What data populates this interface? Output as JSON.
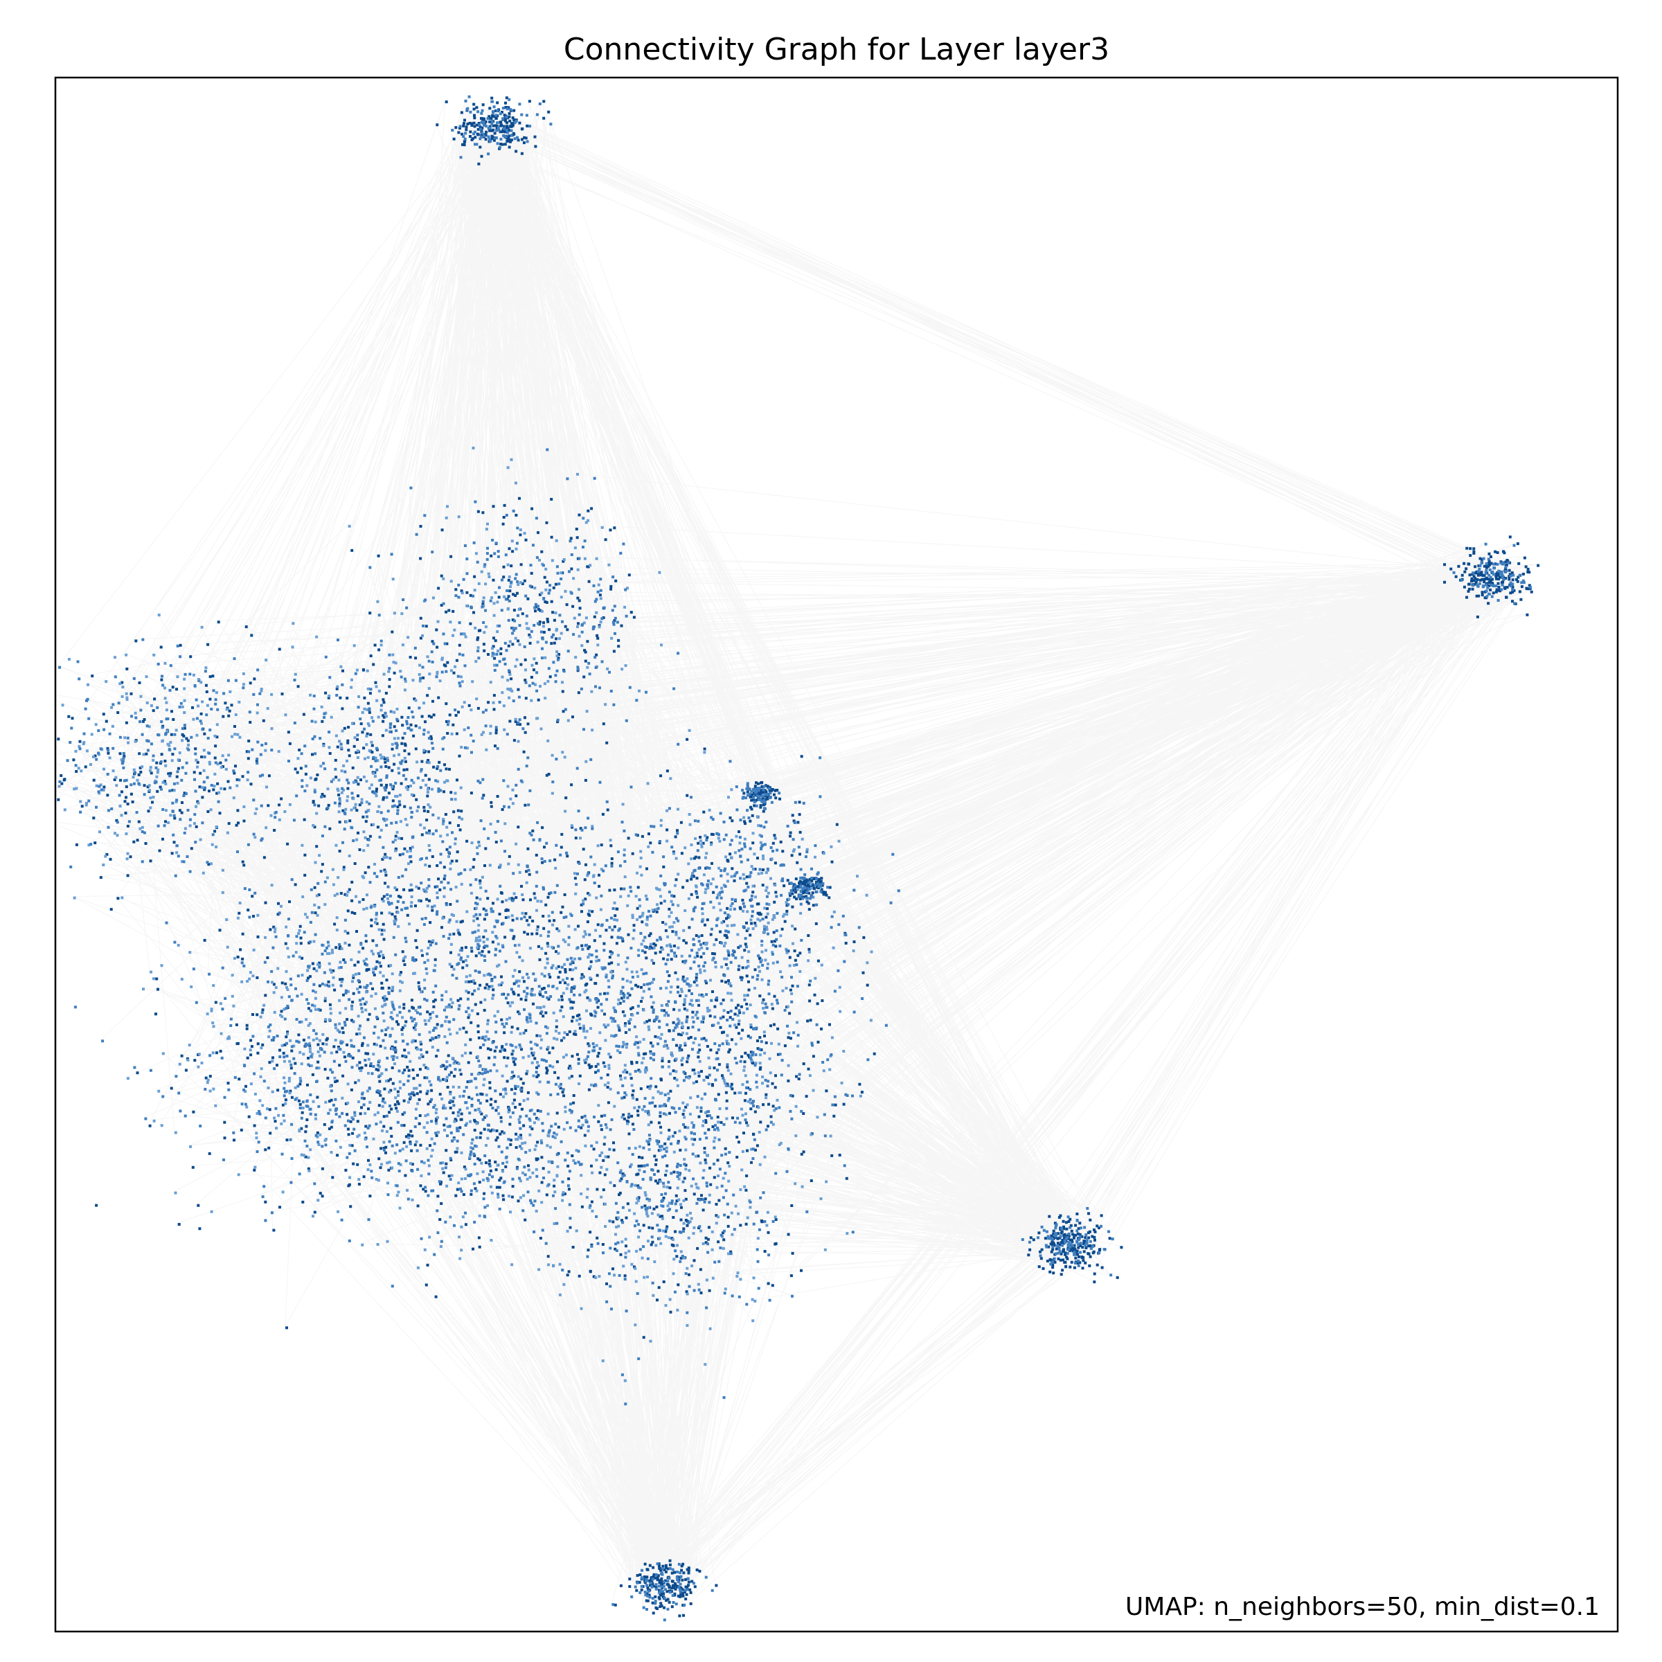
{
  "chart_data": {
    "type": "scatter",
    "title": "Connectivity Graph for Layer layer3",
    "annotation": "UMAP: n_neighbors=50, min_dist=0.1",
    "xlabel": "",
    "ylabel": "",
    "xticks": [],
    "yticks": [],
    "grid": false,
    "legend": "none",
    "xlim": [
      0,
      100
    ],
    "ylim": [
      0,
      100
    ],
    "colors": {
      "point_light": "#6a9fd4",
      "point_mid": "#3f7fc0",
      "point_dark": "#0b4a8c",
      "edge": "#9a9a9a",
      "frame": "#000000"
    },
    "main_cluster": {
      "center": [
        26,
        45
      ],
      "lobes": [
        {
          "x": 7,
          "y": 56,
          "spread": 5
        },
        {
          "x": 17,
          "y": 37,
          "spread": 6
        },
        {
          "x": 24,
          "y": 44,
          "spread": 8
        },
        {
          "x": 21,
          "y": 56,
          "spread": 5
        },
        {
          "x": 30,
          "y": 65,
          "spread": 5
        },
        {
          "x": 35,
          "y": 42,
          "spread": 7
        },
        {
          "x": 42,
          "y": 38,
          "spread": 6
        },
        {
          "x": 39,
          "y": 28,
          "spread": 5
        },
        {
          "x": 27,
          "y": 32,
          "spread": 5
        },
        {
          "x": 44,
          "y": 48,
          "spread": 4
        }
      ]
    },
    "satellite_clusters": [
      {
        "name": "top",
        "x": 28,
        "y": 97,
        "spread": 1.6
      },
      {
        "name": "right",
        "x": 92,
        "y": 68,
        "spread": 1.6
      },
      {
        "name": "lower-right",
        "x": 65,
        "y": 25,
        "spread": 1.7
      },
      {
        "name": "bottom",
        "x": 39,
        "y": 3,
        "spread": 1.5
      },
      {
        "name": "tip-a",
        "x": 45,
        "y": 54,
        "spread": 0.8
      },
      {
        "name": "tip-b",
        "x": 48,
        "y": 48,
        "spread": 0.8
      }
    ]
  }
}
